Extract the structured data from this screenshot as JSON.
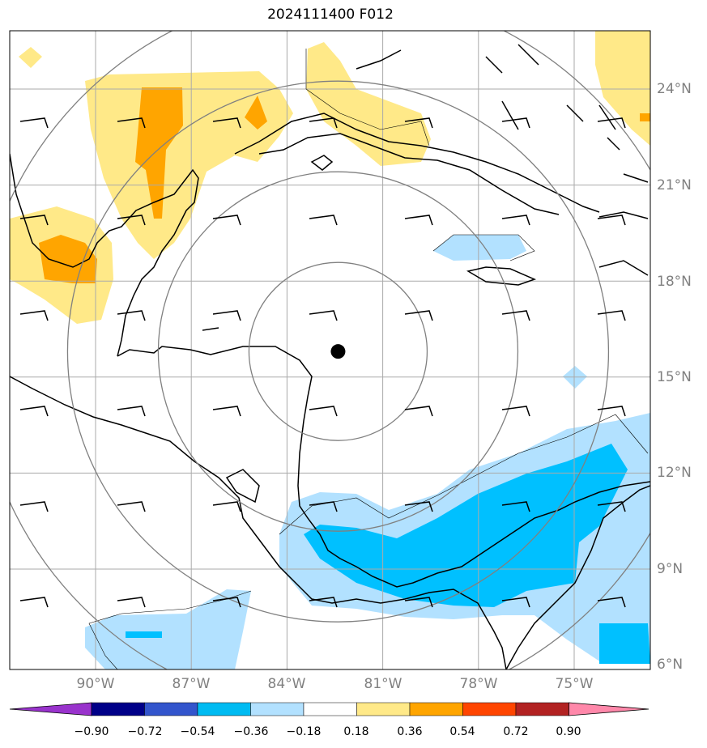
{
  "title": "2024111400 F012",
  "colors": {
    "pos_018_036": "#FFE988",
    "pos_036_054": "#FFA500",
    "neg_018_036": "#B2E1FF",
    "neg_036_054": "#00C0FF",
    "gridline": "#aaaaaa",
    "range_ring": "#808080",
    "coast": "#000000",
    "storm_center": "#000000"
  },
  "lat_labels": [
    "24°N",
    "21°N",
    "18°N",
    "15°N",
    "12°N",
    "9°N",
    "6°N"
  ],
  "lon_labels": [
    "90°W",
    "87°W",
    "84°W",
    "81°W",
    "78°W",
    "75°W"
  ],
  "colorbar": {
    "labels": [
      "−0.90",
      "−0.72",
      "−0.54",
      "−0.36",
      "−0.18",
      "0.18",
      "0.36",
      "0.54",
      "0.72",
      "0.90"
    ],
    "colors": [
      "#9933CC",
      "#000088",
      "#3355CC",
      "#00BBF2",
      "#B2E1FF",
      "#FFFFFF",
      "#FFE988",
      "#FFA500",
      "#FF4500",
      "#B22222",
      "#FF88AA"
    ]
  },
  "storm_center": {
    "lat": 15.8,
    "lon": -82.4
  },
  "icons": [
    "storm-center-marker",
    "wind-barb-icon"
  ]
}
